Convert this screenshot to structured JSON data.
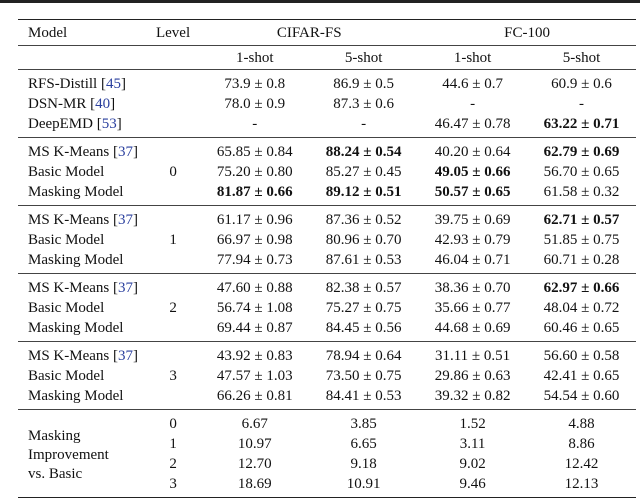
{
  "header": {
    "model": "Model",
    "level": "Level",
    "dataset1": "CIFAR-FS",
    "dataset2": "FC-100",
    "shots": [
      "1-shot",
      "5-shot",
      "1-shot",
      "5-shot"
    ]
  },
  "groups": [
    {
      "level": "",
      "rows": [
        {
          "model": "RFS-Distill",
          "ref": "45",
          "values": [
            "73.9 ± 0.8",
            "86.9 ± 0.5",
            "44.6 ± 0.7",
            "60.9 ± 0.6"
          ],
          "bold": []
        },
        {
          "model": "DSN-MR",
          "ref": "40",
          "values": [
            "78.0 ± 0.9",
            "87.3 ± 0.6",
            "-",
            "-"
          ],
          "bold": []
        },
        {
          "model": "DeepEMD",
          "ref": "53",
          "values": [
            "-",
            "-",
            "46.47 ± 0.78",
            "63.22 ± 0.71"
          ],
          "bold": [
            3
          ]
        }
      ]
    },
    {
      "level": "0",
      "rows": [
        {
          "model": "MS K-Means",
          "ref": "37",
          "values": [
            "65.85 ± 0.84",
            "88.24 ± 0.54",
            "40.20 ± 0.64",
            "62.79 ± 0.69"
          ],
          "bold": [
            1,
            3
          ]
        },
        {
          "model": "Basic Model",
          "ref": "",
          "values": [
            "75.20 ± 0.80",
            "85.27 ± 0.45",
            "49.05 ± 0.66",
            "56.70 ± 0.65"
          ],
          "bold": [
            2
          ]
        },
        {
          "model": "Masking Model",
          "ref": "",
          "values": [
            "81.87 ± 0.66",
            "89.12 ± 0.51",
            "50.57 ± 0.65",
            "61.58 ± 0.32"
          ],
          "bold": [
            0,
            1,
            2
          ]
        }
      ]
    },
    {
      "level": "1",
      "rows": [
        {
          "model": "MS K-Means",
          "ref": "37",
          "values": [
            "61.17 ± 0.96",
            "87.36 ± 0.52",
            "39.75 ± 0.69",
            "62.71 ± 0.57"
          ],
          "bold": [
            3
          ]
        },
        {
          "model": "Basic Model",
          "ref": "",
          "values": [
            "66.97 ± 0.98",
            "80.96 ± 0.70",
            "42.93 ± 0.79",
            "51.85 ± 0.75"
          ],
          "bold": []
        },
        {
          "model": "Masking Model",
          "ref": "",
          "values": [
            "77.94 ± 0.73",
            "87.61 ± 0.53",
            "46.04 ± 0.71",
            "60.71 ± 0.28"
          ],
          "bold": []
        }
      ]
    },
    {
      "level": "2",
      "rows": [
        {
          "model": "MS K-Means",
          "ref": "37",
          "values": [
            "47.60 ± 0.88",
            "82.38 ± 0.57",
            "38.36 ± 0.70",
            "62.97 ± 0.66"
          ],
          "bold": [
            3
          ]
        },
        {
          "model": "Basic Model",
          "ref": "",
          "values": [
            "56.74 ± 1.08",
            "75.27 ± 0.75",
            "35.66 ± 0.77",
            "48.04 ± 0.72"
          ],
          "bold": []
        },
        {
          "model": "Masking Model",
          "ref": "",
          "values": [
            "69.44 ± 0.87",
            "84.45 ± 0.56",
            "44.68 ± 0.69",
            "60.46 ± 0.65"
          ],
          "bold": []
        }
      ]
    },
    {
      "level": "3",
      "rows": [
        {
          "model": "MS K-Means",
          "ref": "37",
          "values": [
            "43.92 ± 0.83",
            "78.94 ± 0.64",
            "31.11 ± 0.51",
            "56.60 ± 0.58"
          ],
          "bold": []
        },
        {
          "model": "Basic Model",
          "ref": "",
          "values": [
            "47.57 ± 1.03",
            "73.50 ± 0.75",
            "29.86 ± 0.63",
            "42.41 ± 0.65"
          ],
          "bold": []
        },
        {
          "model": "Masking Model",
          "ref": "",
          "values": [
            "66.26 ± 0.81",
            "84.41 ± 0.53",
            "39.32 ± 0.82",
            "54.54 ± 0.60"
          ],
          "bold": []
        }
      ]
    }
  ],
  "improvement": {
    "label_lines": [
      "Masking",
      "Improvement",
      "vs. Basic"
    ],
    "rows": [
      {
        "level": "0",
        "values": [
          "6.67",
          "3.85",
          "1.52",
          "4.88"
        ]
      },
      {
        "level": "1",
        "values": [
          "10.97",
          "6.65",
          "3.11",
          "8.86"
        ]
      },
      {
        "level": "2",
        "values": [
          "12.70",
          "9.18",
          "9.02",
          "12.42"
        ]
      },
      {
        "level": "3",
        "values": [
          "18.69",
          "10.91",
          "9.46",
          "12.13"
        ]
      }
    ]
  }
}
